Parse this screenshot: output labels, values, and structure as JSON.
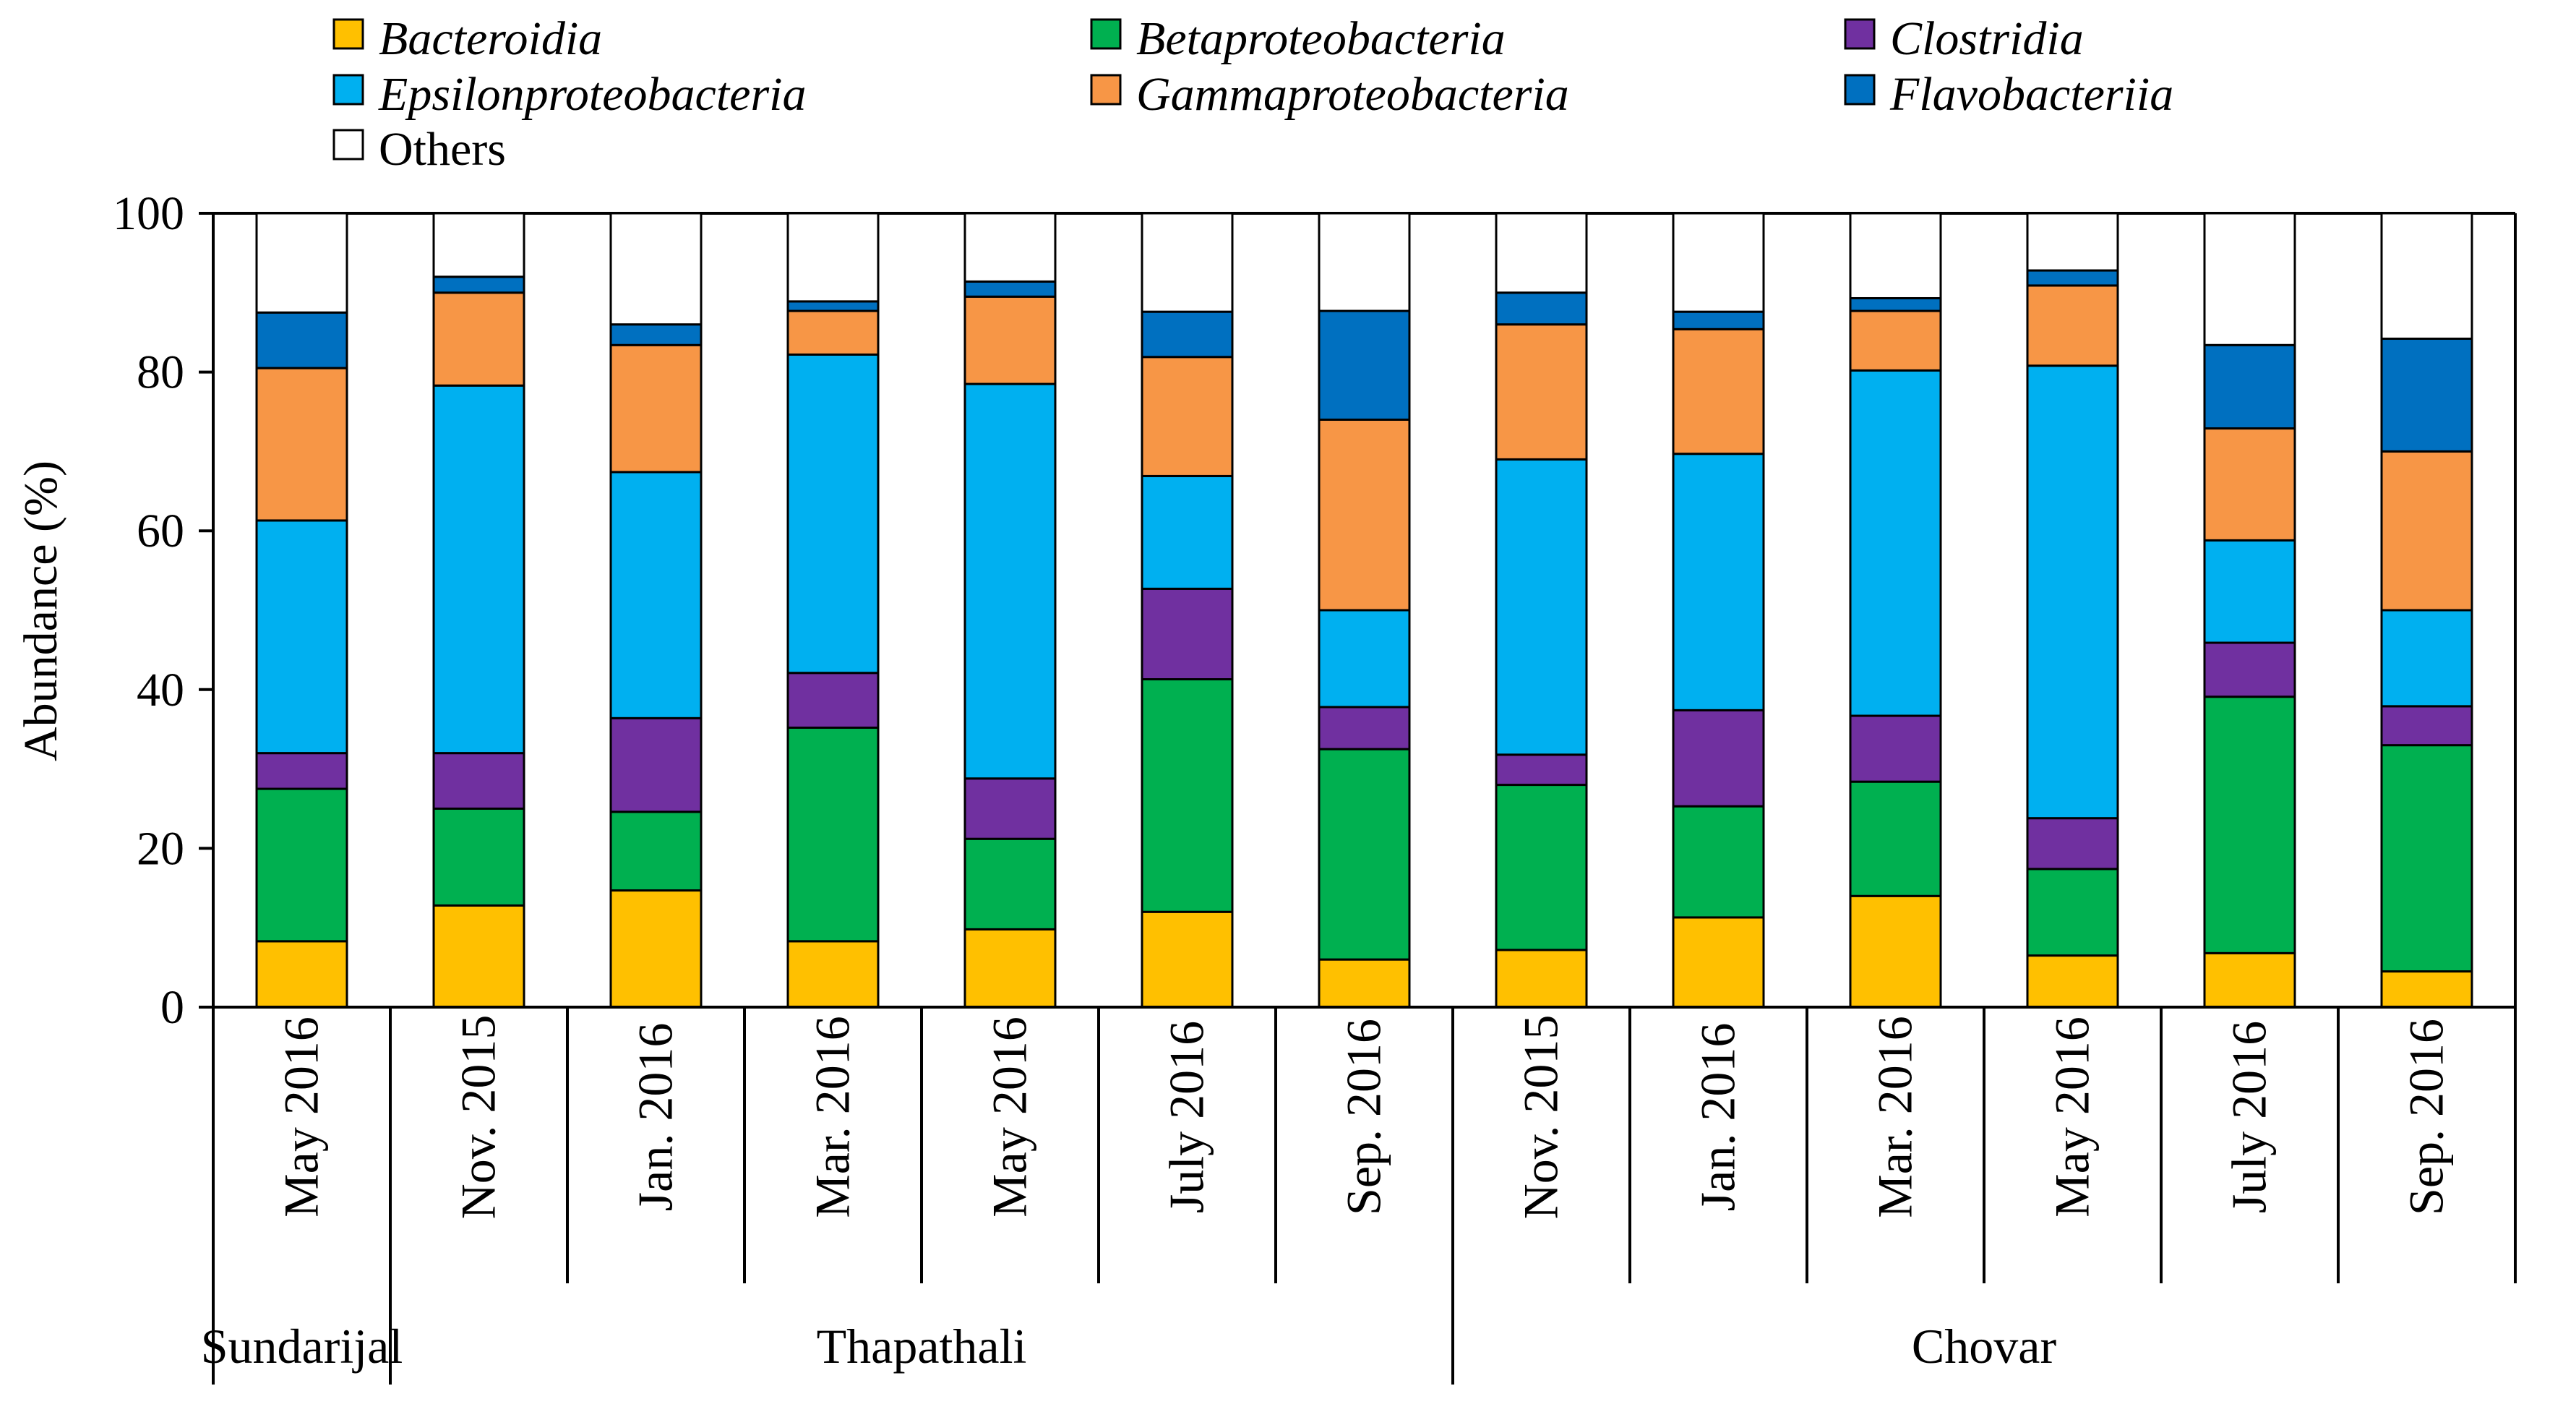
{
  "chart_data": {
    "type": "bar",
    "stacked": true,
    "title": "",
    "xlabel": "",
    "ylabel": "Abundance (%)",
    "ylim": [
      0,
      100
    ],
    "yticks": [
      "0",
      "20",
      "40",
      "60",
      "80",
      "100"
    ],
    "grid": false,
    "legend_position": "top-left",
    "categories": [
      "May 2016",
      "Nov. 2015",
      "Jan. 2016",
      "Mar. 2016",
      "May 2016",
      "July 2016",
      "Sep. 2016",
      "Nov. 2015",
      "Jan. 2016",
      "Mar. 2016",
      "May 2016",
      "July 2016",
      "Sep. 2016"
    ],
    "groups": [
      {
        "name": "Sundarijal",
        "start": 0,
        "end": 0
      },
      {
        "name": "Thapathali",
        "start": 1,
        "end": 6
      },
      {
        "name": "Chovar",
        "start": 7,
        "end": 12
      }
    ],
    "series": [
      {
        "name": "Bacteroidia",
        "color": "#FFC000",
        "italic": true,
        "values": [
          8.3,
          12.8,
          14.7,
          8.3,
          9.8,
          12.0,
          6.0,
          7.2,
          11.3,
          14.0,
          6.5,
          6.8,
          4.5
        ]
      },
      {
        "name": "Betaproteobacteria",
        "color": "#00B050",
        "italic": true,
        "values": [
          19.2,
          12.2,
          9.9,
          26.9,
          11.4,
          29.3,
          26.5,
          20.8,
          14.0,
          14.4,
          10.9,
          32.3,
          28.5
        ]
      },
      {
        "name": "Clostridia",
        "color": "#7030A0",
        "italic": true,
        "values": [
          4.5,
          7.0,
          11.8,
          6.9,
          7.6,
          11.4,
          5.3,
          3.8,
          12.1,
          8.3,
          6.4,
          6.8,
          4.9
        ]
      },
      {
        "name": "Epsilonproteobacteria",
        "color": "#00B0F0",
        "italic": true,
        "values": [
          29.3,
          46.3,
          31.0,
          40.1,
          49.7,
          14.2,
          12.2,
          37.2,
          32.3,
          43.5,
          57.0,
          12.9,
          12.1
        ]
      },
      {
        "name": "Gammaproteobacteria",
        "color": "#F79646",
        "italic": true,
        "values": [
          19.2,
          11.7,
          16.0,
          5.5,
          11.0,
          15.0,
          24.0,
          17.0,
          15.7,
          7.5,
          10.1,
          14.1,
          20.0
        ]
      },
      {
        "name": "Flavobacteriia",
        "color": "#0070C0",
        "italic": true,
        "values": [
          7.0,
          2.0,
          2.6,
          1.2,
          1.9,
          5.7,
          13.7,
          4.0,
          2.2,
          1.6,
          1.9,
          10.5,
          14.2
        ]
      },
      {
        "name": "Others",
        "color": "#FFFFFF",
        "italic": false,
        "values": [
          12.5,
          8.0,
          14.0,
          11.1,
          8.6,
          12.4,
          12.3,
          10.0,
          12.4,
          10.7,
          7.2,
          16.6,
          15.8
        ]
      }
    ]
  }
}
